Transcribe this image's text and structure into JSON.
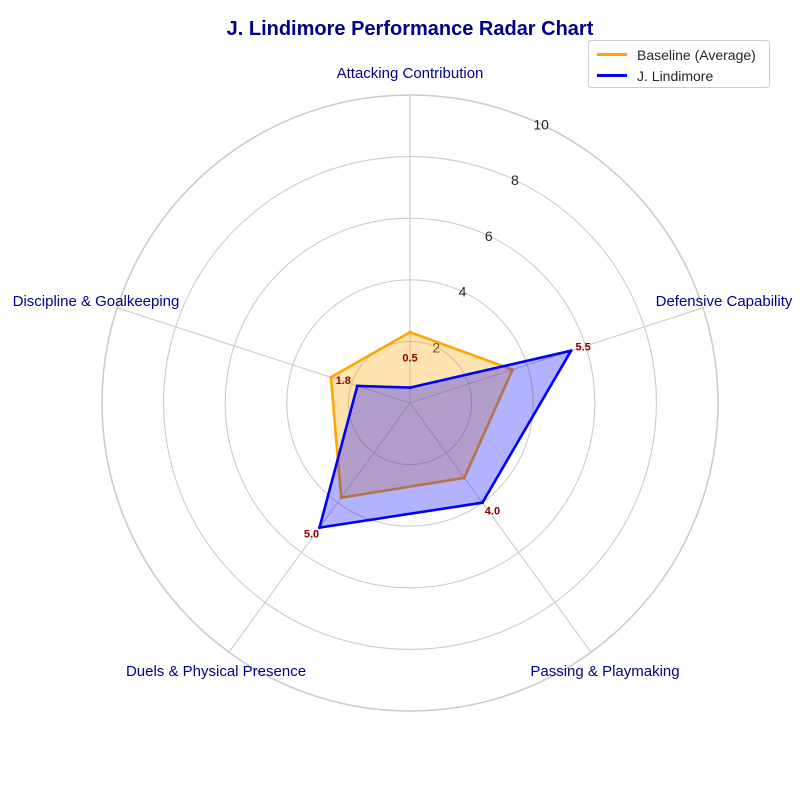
{
  "chart_data": {
    "type": "radar",
    "title": "J. Lindimore Performance Radar Chart",
    "categories": [
      "Attacking Contribution",
      "Defensive Capability",
      "Passing & Playmaking",
      "Duels & Physical Presence",
      "Discipline & Goalkeeping"
    ],
    "radial_ticks": [
      2,
      4,
      6,
      8,
      10
    ],
    "rlim": [
      0,
      10
    ],
    "grid": true,
    "legend_position": "top-right",
    "series": [
      {
        "name": "Baseline (Average)",
        "values": [
          2.3,
          3.5,
          3.0,
          3.8,
          2.7
        ],
        "color": "#ffa500",
        "fill": "#ffa500"
      },
      {
        "name": "J. Lindimore",
        "values": [
          0.5,
          5.5,
          4.0,
          5.0,
          1.8
        ],
        "color": "#0000ff",
        "fill": "#0000ff",
        "data_labels": [
          "0.5",
          "5.5",
          "4.0",
          "5.0",
          "1.8"
        ]
      }
    ],
    "label_color": "#00008b",
    "data_label_color": "#8b0000"
  }
}
